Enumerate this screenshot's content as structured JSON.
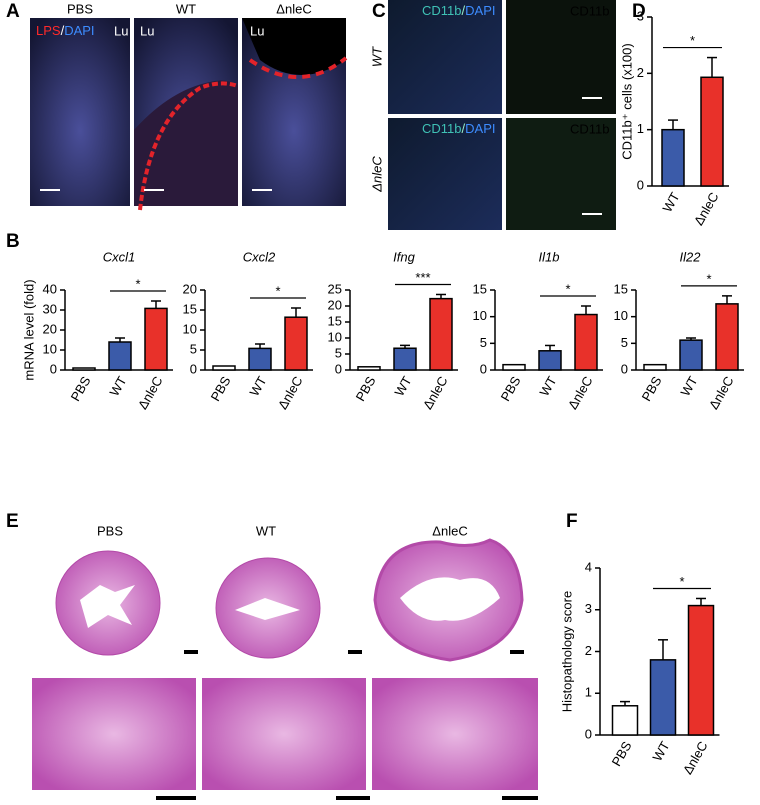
{
  "panel_labels": [
    "A",
    "B",
    "C",
    "D",
    "E",
    "F"
  ],
  "panel_a": {
    "columns": [
      "PBS",
      "WT",
      "ΔnleC"
    ],
    "stain": [
      "LPS",
      "/",
      "DAPI"
    ],
    "lumen": [
      "Lu",
      "Lu",
      "Lu"
    ]
  },
  "panel_c": {
    "rows": [
      "WT",
      "ΔnleC"
    ],
    "columns": [
      [
        "CD11b",
        "/",
        "DAPI"
      ],
      "CD11b"
    ],
    "columns_lower": [
      [
        "CD11b",
        "/",
        "DAPI"
      ],
      "CD11b"
    ]
  },
  "panel_e": {
    "columns": [
      "PBS",
      "WT",
      "ΔnleC"
    ]
  },
  "chart_data": [
    {
      "type": "bar",
      "categories": [
        "WT",
        "ΔnleC"
      ],
      "values": [
        1.0,
        1.93
      ],
      "errors": [
        0.17,
        0.35
      ],
      "colors": [
        "#3b5ba9",
        "#e8312a"
      ],
      "ylim": [
        0,
        3
      ],
      "yticks": [
        0,
        1,
        2,
        3
      ],
      "y_label": "CD11b⁺ cells (x100)",
      "significance": "*"
    },
    {
      "type": "bar",
      "title": "Cxcl1",
      "categories": [
        "PBS",
        "WT",
        "ΔnleC"
      ],
      "values": [
        1,
        14,
        30.8
      ],
      "errors": [
        0,
        2,
        3.7
      ],
      "colors": [
        "#ffffff",
        "#3b5ba9",
        "#e8312a"
      ],
      "ylim": [
        0,
        40
      ],
      "yticks": [
        0,
        10,
        20,
        30,
        40
      ],
      "y_label": "mRNA level (fold)",
      "significance": "*"
    },
    {
      "type": "bar",
      "title": "Cxcl2",
      "categories": [
        "PBS",
        "WT",
        "ΔnleC"
      ],
      "values": [
        1,
        5.4,
        13.2
      ],
      "errors": [
        0,
        1.1,
        2.3
      ],
      "colors": [
        "#ffffff",
        "#3b5ba9",
        "#e8312a"
      ],
      "ylim": [
        0,
        20
      ],
      "yticks": [
        0,
        5,
        10,
        15,
        20
      ],
      "significance": "*"
    },
    {
      "type": "bar",
      "title": "Ifng",
      "categories": [
        "PBS",
        "WT",
        "ΔnleC"
      ],
      "values": [
        1,
        6.8,
        22.3
      ],
      "errors": [
        0,
        0.9,
        1.3
      ],
      "colors": [
        "#ffffff",
        "#3b5ba9",
        "#e8312a"
      ],
      "ylim": [
        0,
        25
      ],
      "yticks": [
        0,
        5,
        10,
        15,
        20,
        25
      ],
      "significance": "***"
    },
    {
      "type": "bar",
      "title": "Il1b",
      "categories": [
        "PBS",
        "WT",
        "ΔnleC"
      ],
      "values": [
        1,
        3.6,
        10.4
      ],
      "errors": [
        0,
        1.0,
        1.6
      ],
      "colors": [
        "#ffffff",
        "#3b5ba9",
        "#e8312a"
      ],
      "ylim": [
        0,
        15
      ],
      "yticks": [
        0,
        5,
        10,
        15
      ],
      "significance": "*"
    },
    {
      "type": "bar",
      "title": "Il22",
      "categories": [
        "PBS",
        "WT",
        "ΔnleC"
      ],
      "values": [
        1,
        5.6,
        12.4
      ],
      "errors": [
        0,
        0.4,
        1.5
      ],
      "colors": [
        "#ffffff",
        "#3b5ba9",
        "#e8312a"
      ],
      "ylim": [
        0,
        15
      ],
      "yticks": [
        0,
        5,
        10,
        15
      ],
      "significance": "*"
    },
    {
      "type": "bar",
      "categories": [
        "PBS",
        "WT",
        "ΔnleC"
      ],
      "values": [
        0.7,
        1.8,
        3.1
      ],
      "errors": [
        0.1,
        0.48,
        0.17
      ],
      "colors": [
        "#ffffff",
        "#3b5ba9",
        "#e8312a"
      ],
      "ylim": [
        0,
        4
      ],
      "yticks": [
        0,
        1,
        2,
        3,
        4
      ],
      "y_label": "Histopathology score",
      "significance": "*"
    }
  ]
}
